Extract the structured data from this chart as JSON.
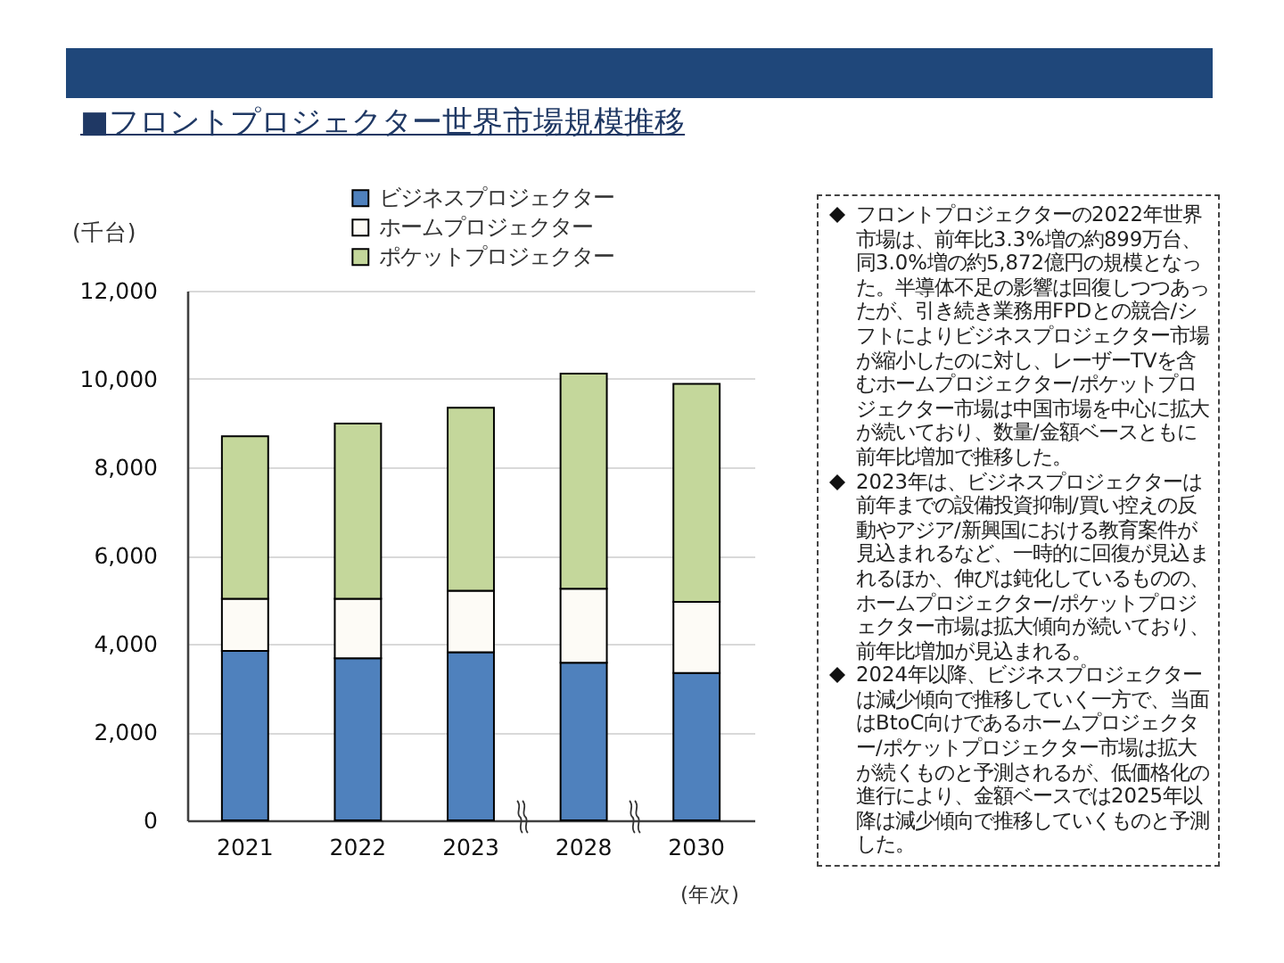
{
  "chart_data": {
    "type": "bar",
    "title": "■フロントプロジェクター世界市場規模推移",
    "xlabel": "(年次)",
    "ylabel": "(千台)",
    "categories": [
      "2021",
      "2022",
      "2023",
      "2028",
      "2030"
    ],
    "stacked": true,
    "series": [
      {
        "name": "ビジネスプロジェクター",
        "color": "#4f81bd",
        "values": [
          3840,
          3670,
          3810,
          3570,
          3340
        ]
      },
      {
        "name": "ホームプロジェクター",
        "color": "#fdfbf6",
        "values": [
          1180,
          1350,
          1390,
          1680,
          1610
        ]
      },
      {
        "name": "ポケットプロジェクター",
        "color": "#c4d79b",
        "values": [
          3680,
          3970,
          4150,
          4870,
          4940
        ]
      }
    ],
    "ylim": [
      0,
      12000
    ],
    "yticks": [
      0,
      {
        "value": 2000,
        "label": "2,000"
      },
      {
        "value": 4000,
        "label": "4,000"
      },
      {
        "value": 6000,
        "label": "6,000"
      },
      {
        "value": 8000,
        "label": "8,000"
      },
      {
        "value": 10000,
        "label": "10,000"
      },
      {
        "value": 12000,
        "label": "12,000"
      }
    ],
    "grid": "y",
    "legend": "top",
    "annotations": [
      "フロントプロジェクターの2022年世界市場は、前年比3.3%増の約899万台、同3.0%増の約5,872億円の規模となった。半導体不足の影響は回復しつつあったが、引き続き業務用FPDとの競合/シフトによりビジネスプロジェクター市場が縮小したのに対し、レーザーTVを含むホームプロジェクター/ポケットプロジェクター市場は中国市場を中心に拡大が続いており、数量/金額ベースともに前年比増加で推移した。",
      "2023年は、ビジネスプロジェクターは前年までの設備投資抑制/買い控えの反動やアジア/新興国における教育案件が見込まれるなど、一時的に回復が見込まれるほか、伸びは鈍化しているものの、ホームプロジェクター/ポケットプロジェクター市場は拡大傾向が続いており、前年比増加が見込まれる。",
      "2024年以降、ビジネスプロジェクターは減少傾向で推移していく一方で、当面はBtoC向けであるホームプロジェクター/ポケットプロジェクター市場は拡大が続くものと予測されるが、低価格化の進行により、金額ベースでは2025年以降は減少傾向で推移していくものと予測した。"
    ]
  }
}
